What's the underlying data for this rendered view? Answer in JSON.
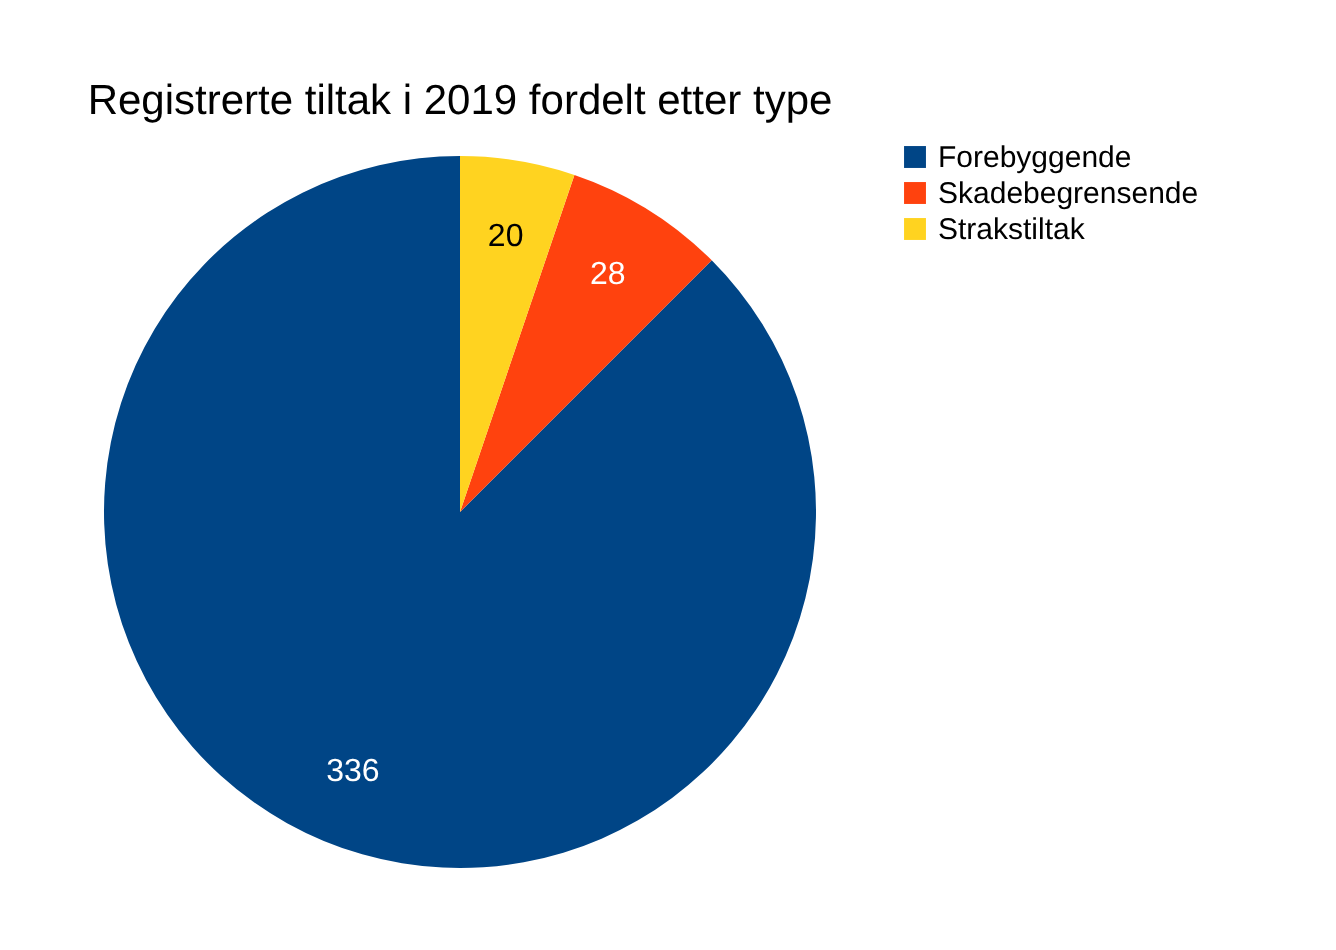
{
  "chart_data": {
    "type": "pie",
    "title": "Registrerte tiltak i 2019 fordelt etter type",
    "categories": [
      "Forebyggende",
      "Skadebegrensende",
      "Strakstiltak"
    ],
    "values": [
      336,
      28,
      20
    ],
    "colors": [
      "#004586",
      "#ff420e",
      "#ffd320"
    ],
    "data_labels": true,
    "legend": "right"
  }
}
